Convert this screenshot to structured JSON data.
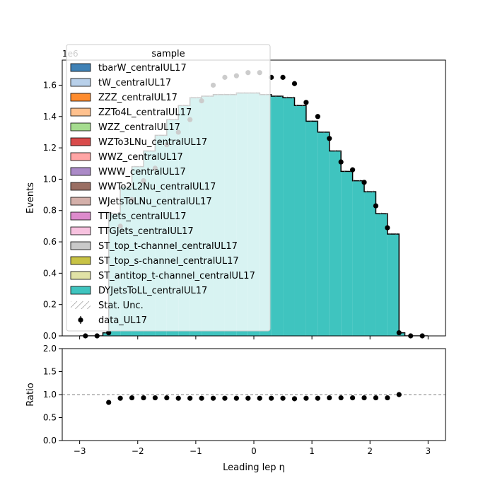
{
  "chart_data": [
    {
      "type": "bar",
      "panel": "main",
      "ylabel": "Events",
      "y_scale_label": "1e6",
      "ylim": [
        0,
        1.76
      ],
      "xlim": [
        -3.3,
        3.3
      ],
      "yticks": [
        0.0,
        0.2,
        0.4,
        0.6,
        0.8,
        1.0,
        1.2,
        1.4,
        1.6
      ],
      "ytick_labels": [
        "0.0",
        "0.2",
        "0.4",
        "0.6",
        "0.8",
        "1.0",
        "1.2",
        "1.4",
        "1.6"
      ],
      "legend_title": "sample",
      "legend_position": "top-left",
      "bin_edges": [
        -3.0,
        -2.8,
        -2.6,
        -2.5,
        -2.3,
        -2.1,
        -1.9,
        -1.7,
        -1.5,
        -1.3,
        -1.1,
        -0.9,
        -0.7,
        -0.5,
        -0.3,
        -0.1,
        0.1,
        0.3,
        0.5,
        0.7,
        0.9,
        1.1,
        1.3,
        1.5,
        1.7,
        1.9,
        2.1,
        2.3,
        2.5,
        2.6,
        2.8,
        3.0
      ],
      "mc_total_values": [
        0.0,
        0.0,
        0.02,
        0.78,
        0.95,
        1.08,
        1.18,
        1.28,
        1.38,
        1.47,
        1.52,
        1.53,
        1.54,
        1.54,
        1.55,
        1.55,
        1.54,
        1.53,
        1.52,
        1.47,
        1.37,
        1.3,
        1.18,
        1.05,
        0.99,
        0.92,
        0.78,
        0.65,
        0.02,
        0.0,
        0.0
      ],
      "series": [
        {
          "name": "tbarW_centralUL17",
          "color": "#3f81b5"
        },
        {
          "name": "tW_centralUL17",
          "color": "#b8d0ea"
        },
        {
          "name": "ZZZ_centralUL17",
          "color": "#ff8c2e"
        },
        {
          "name": "ZZTo4L_centralUL17",
          "color": "#ffc18e"
        },
        {
          "name": "WZZ_centralUL17",
          "color": "#a5dc8f"
        },
        {
          "name": "WZTo3LNu_centralUL17",
          "color": "#d94b4b"
        },
        {
          "name": "WWZ_centralUL17",
          "color": "#ffa5a5"
        },
        {
          "name": "WWW_centralUL17",
          "color": "#ab8ac7"
        },
        {
          "name": "WWTo2L2Nu_centralUL17",
          "color": "#9a6e63"
        },
        {
          "name": "WJetsToLNu_centralUL17",
          "color": "#d4b0aa"
        },
        {
          "name": "TTJets_centralUL17",
          "color": "#dd8bcc"
        },
        {
          "name": "TTGJets_centralUL17",
          "color": "#f7c2df"
        },
        {
          "name": "ST_top_t-channel_centralUL17",
          "color": "#c9c9c9"
        },
        {
          "name": "ST_top_s-channel_centralUL17",
          "color": "#c8c345"
        },
        {
          "name": "ST_antitop_t-channel_centralUL17",
          "color": "#e1e2a6"
        },
        {
          "name": "DYJetsToLL_centralUL17",
          "color": "#3fc4bf",
          "values": [
            0.0,
            0.0,
            0.02,
            0.78,
            0.95,
            1.08,
            1.18,
            1.28,
            1.38,
            1.47,
            1.52,
            1.53,
            1.54,
            1.54,
            1.55,
            1.55,
            1.54,
            1.53,
            1.52,
            1.47,
            1.37,
            1.3,
            1.18,
            1.05,
            0.99,
            0.92,
            0.78,
            0.65,
            0.02,
            0.0,
            0.0
          ]
        }
      ],
      "stat_unc_label": "Stat. Unc.",
      "data_label": "data_UL17",
      "data_x": [
        -2.9,
        -2.7,
        -2.5,
        -2.3,
        -2.1,
        -1.9,
        -1.7,
        -1.5,
        -1.3,
        -1.1,
        -0.9,
        -0.7,
        -0.5,
        -0.3,
        -0.1,
        0.1,
        0.3,
        0.5,
        0.7,
        0.9,
        1.1,
        1.3,
        1.5,
        1.7,
        1.9,
        2.1,
        2.3,
        2.5,
        2.7,
        2.9
      ],
      "data_y": [
        0.0,
        0.0,
        0.02,
        0.7,
        0.87,
        0.99,
        1.07,
        1.22,
        1.3,
        1.38,
        1.5,
        1.6,
        1.65,
        1.66,
        1.68,
        1.68,
        1.65,
        1.65,
        1.61,
        1.49,
        1.4,
        1.26,
        1.11,
        1.06,
        0.98,
        0.83,
        0.69,
        0.02,
        0.0,
        0.0
      ],
      "grid": false
    },
    {
      "type": "scatter",
      "panel": "ratio",
      "xlabel": "Leading lep η",
      "ylabel": "Ratio",
      "ylim": [
        0.0,
        2.0
      ],
      "xlim": [
        -3.3,
        3.3
      ],
      "yticks": [
        0.0,
        0.5,
        1.0,
        1.5,
        2.0
      ],
      "ytick_labels": [
        "0.0",
        "0.5",
        "1.0",
        "1.5",
        "2.0"
      ],
      "xticks": [
        -3,
        -2,
        -1,
        0,
        1,
        2,
        3
      ],
      "xtick_labels": [
        "−3",
        "−2",
        "−1",
        "0",
        "1",
        "2",
        "3"
      ],
      "reference_line": 1.0,
      "x": [
        -2.5,
        -2.3,
        -2.1,
        -1.9,
        -1.7,
        -1.5,
        -1.3,
        -1.1,
        -0.9,
        -0.7,
        -0.5,
        -0.3,
        -0.1,
        0.1,
        0.3,
        0.5,
        0.7,
        0.9,
        1.1,
        1.3,
        1.5,
        1.7,
        1.9,
        2.1,
        2.3,
        2.5
      ],
      "y": [
        0.83,
        0.92,
        0.93,
        0.93,
        0.93,
        0.93,
        0.92,
        0.92,
        0.92,
        0.92,
        0.92,
        0.92,
        0.92,
        0.92,
        0.92,
        0.92,
        0.91,
        0.92,
        0.92,
        0.93,
        0.93,
        0.93,
        0.93,
        0.93,
        0.93,
        1.0
      ],
      "grid": false
    }
  ]
}
